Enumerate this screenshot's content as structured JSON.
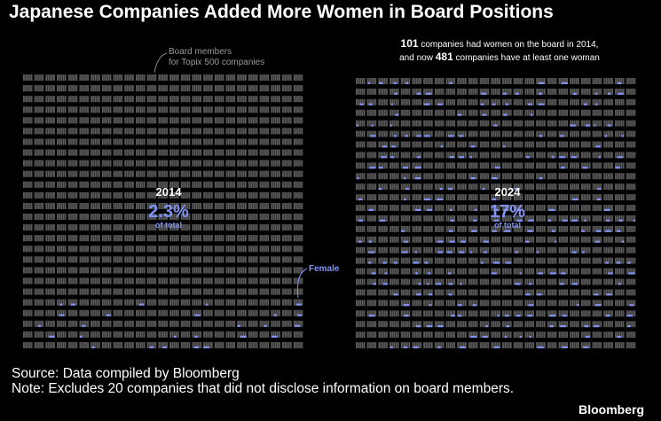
{
  "title": "Japanese Companies Added More Women in Board Positions",
  "chart_data": {
    "type": "waffle",
    "panels": [
      {
        "year": "2014",
        "percent": "2.3%",
        "caption": "of total",
        "female_share": 0.023,
        "companies_with_women": 101
      },
      {
        "year": "2024",
        "percent": "17%",
        "caption": "of total",
        "female_share": 0.17,
        "companies_with_women": 481
      }
    ],
    "annotations": {
      "board_members": [
        "Board members",
        "for Topix 500 companies"
      ],
      "female": "Female",
      "headline_line1": {
        "num": "101",
        "text": " companies had women on the board in 2014,"
      },
      "headline_line2": {
        "prefix": "and now ",
        "num": "481",
        "text": " companies have at least one woman"
      }
    },
    "colors": {
      "male": "#5a5a5a",
      "female": "#8193f5",
      "background": "#000000",
      "text": "#ffffff"
    }
  },
  "source": {
    "line1": "Source: Data compiled by Bloomberg",
    "line2": "Note: Excludes 20 companies that did not disclose information on board members."
  },
  "brand": "Bloomberg"
}
